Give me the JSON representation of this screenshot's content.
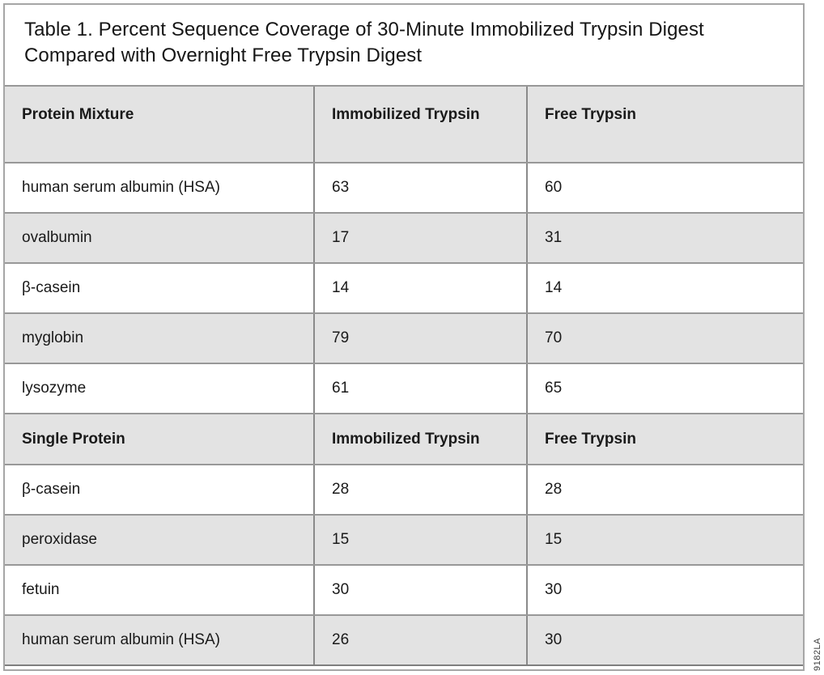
{
  "title_lines": [
    "Table 1. Percent Sequence Coverage of 30-Minute Immobilized Trypsin Digest",
    "Compared with Overnight Free Trypsin Digest"
  ],
  "table": {
    "sections": [
      {
        "header": [
          "Protein Mixture",
          "Immobilized Trypsin",
          "Free Trypsin"
        ],
        "rows": [
          [
            "human serum albumin (HSA)",
            63,
            60
          ],
          [
            "ovalbumin",
            17,
            31
          ],
          [
            "β-casein",
            14,
            14
          ],
          [
            "myglobin",
            79,
            70
          ],
          [
            "lysozyme",
            61,
            65
          ]
        ]
      },
      {
        "header": [
          "Single Protein",
          "Immobilized Trypsin",
          "Free Trypsin"
        ],
        "rows": [
          [
            "β-casein",
            28,
            28
          ],
          [
            "peroxidase",
            15,
            15
          ],
          [
            "fetuin",
            30,
            30
          ],
          [
            "human serum albumin (HSA)",
            26,
            30
          ]
        ]
      }
    ]
  },
  "watermark": "9182LA",
  "colors": {
    "header_and_alt_row_bg": "#e3e3e3",
    "row_bg": "#ffffff",
    "horizontal_border": "#989898",
    "vertical_border": "#8a8a8a",
    "frame_border": "#a6a6a6",
    "text": "#1a1a1a"
  }
}
